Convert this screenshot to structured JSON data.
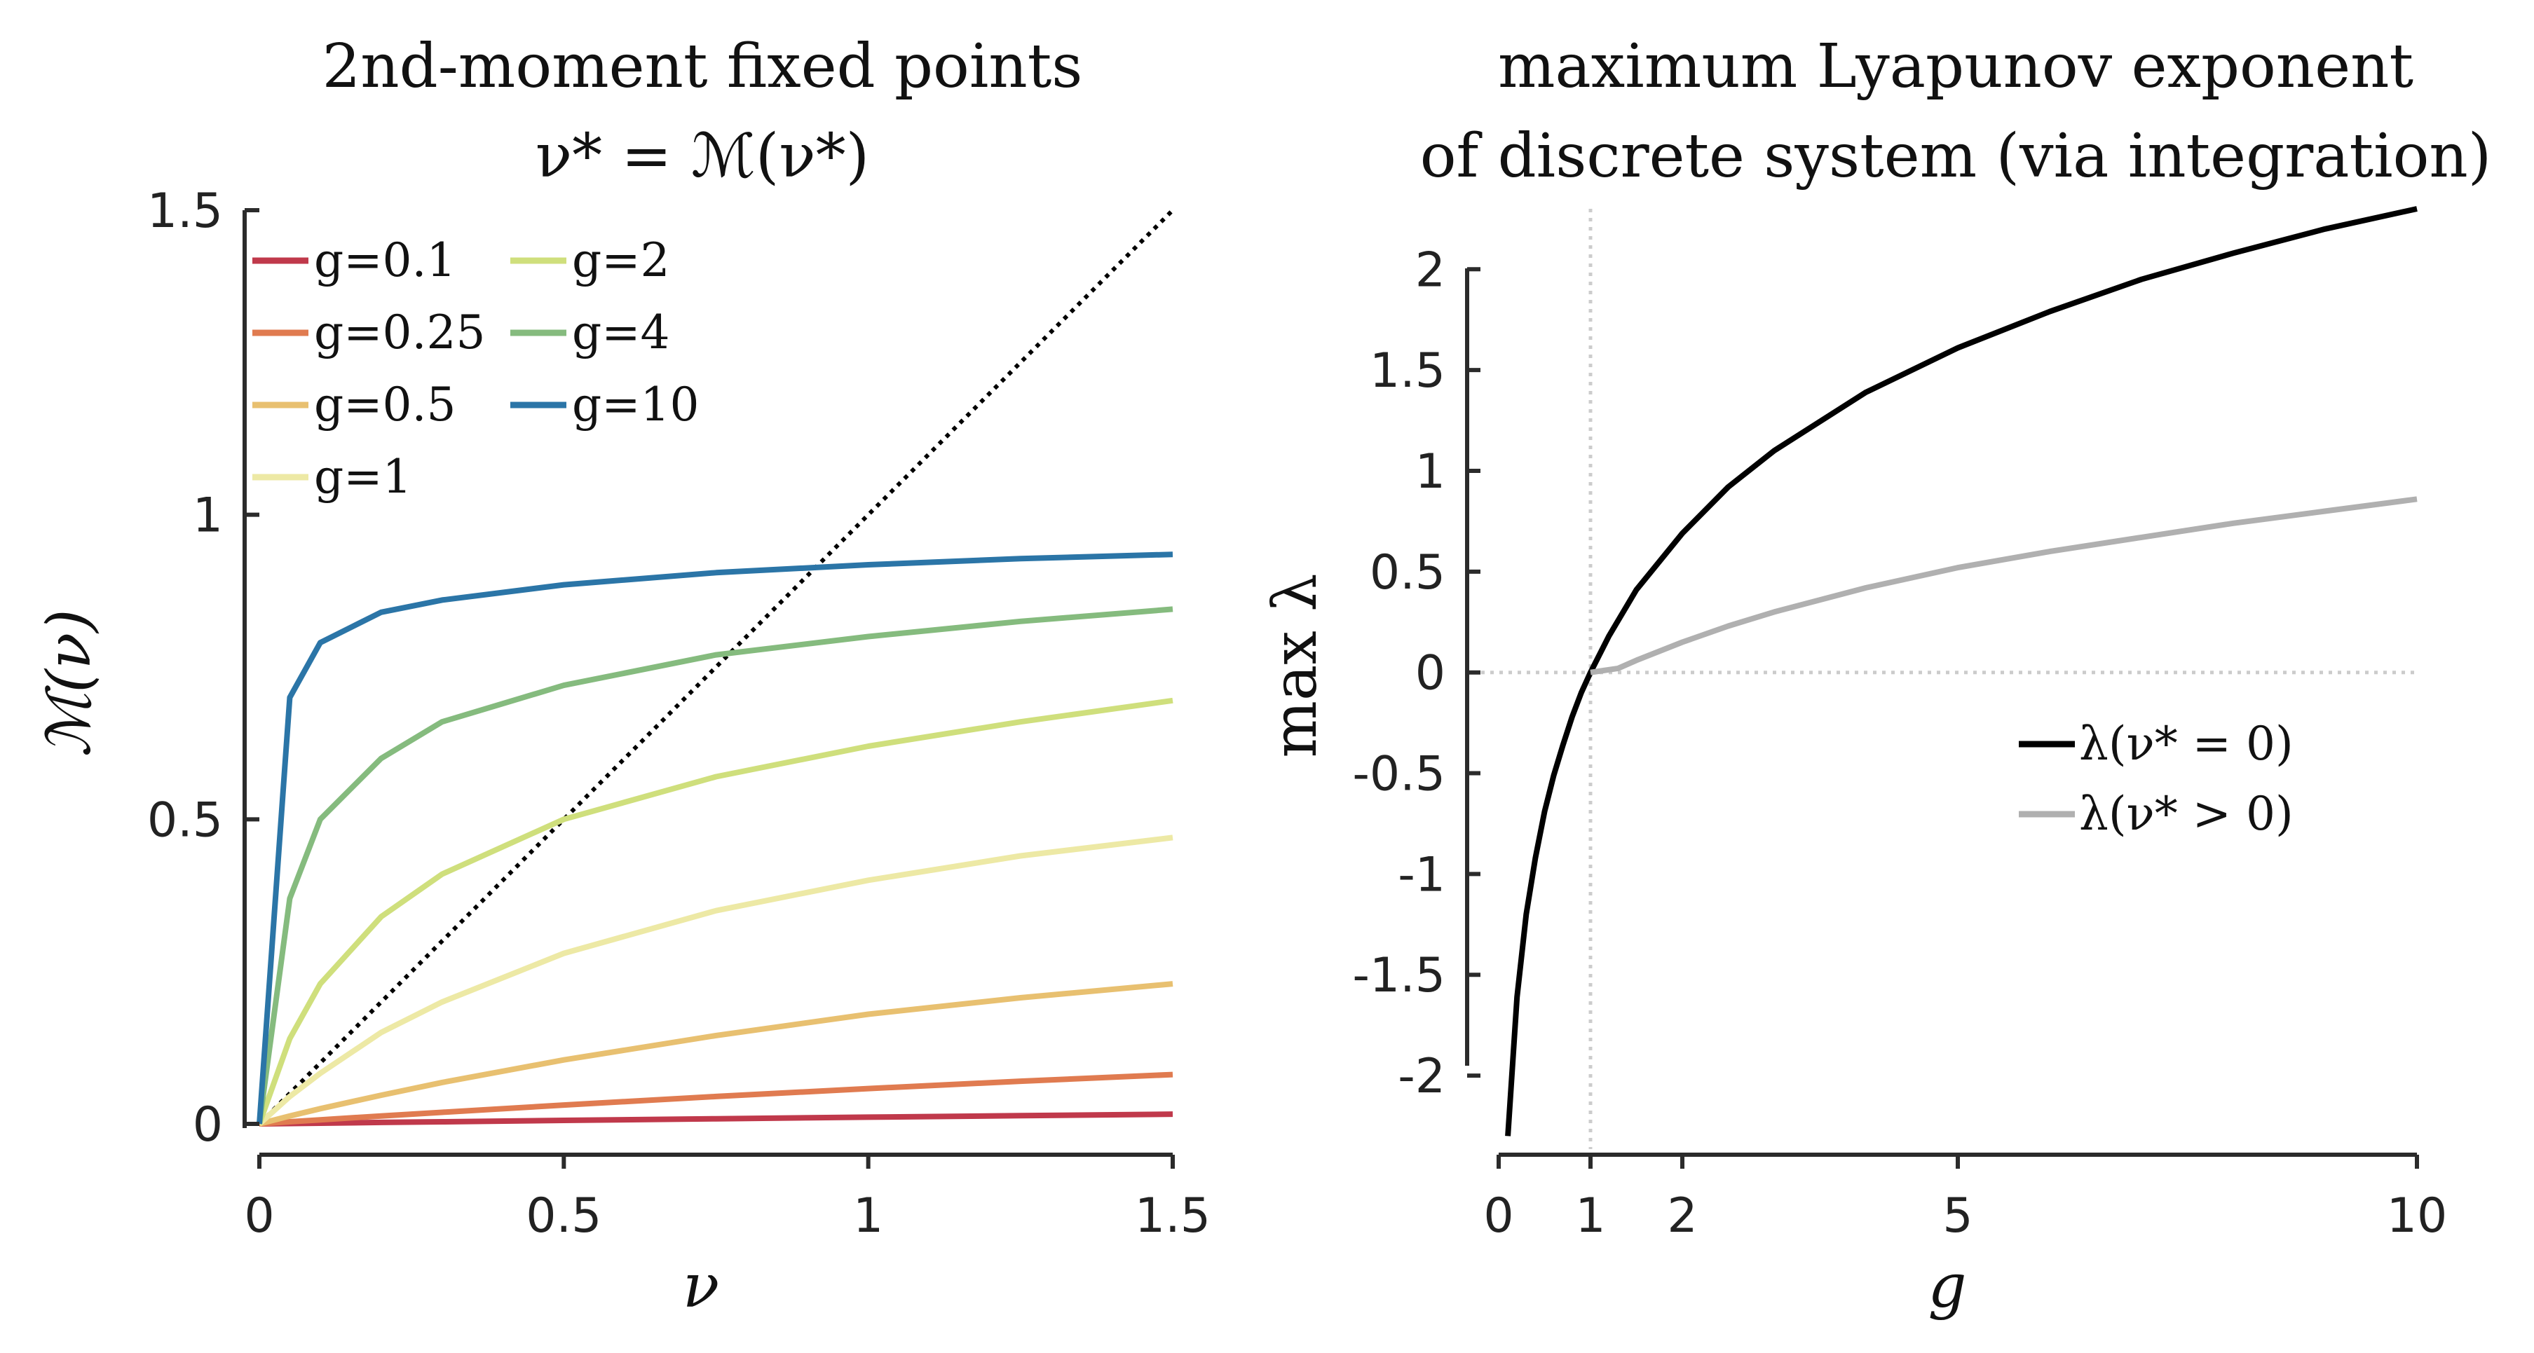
{
  "chart_data": [
    {
      "type": "line",
      "title": [
        "2nd-moment fixed points",
        "ν* = ℳ(ν*)"
      ],
      "xlabel": "ν",
      "ylabel": "ℳ(ν)",
      "xlim": [
        0,
        1.5
      ],
      "ylim": [
        0,
        1.5
      ],
      "xticks": [
        0,
        0.5,
        1,
        1.5
      ],
      "xtick_labels": [
        "0",
        "0.5",
        "1",
        "1.5"
      ],
      "yticks": [
        0,
        0.5,
        1,
        1.5
      ],
      "ytick_labels": [
        "0",
        "0.5",
        "1",
        "1.5"
      ],
      "grid": false,
      "legend_position": "top-left",
      "x": [
        0,
        0.05,
        0.1,
        0.2,
        0.3,
        0.5,
        0.75,
        1.0,
        1.25,
        1.5
      ],
      "series": [
        {
          "name": "g=0.1",
          "color": "#c0394b",
          "values": [
            0,
            0.0006,
            0.0012,
            0.0024,
            0.0035,
            0.0057,
            0.0084,
            0.011,
            0.0135,
            0.016
          ]
        },
        {
          "name": "g=0.25",
          "color": "#e07b50",
          "values": [
            0,
            0.0034,
            0.0067,
            0.013,
            0.019,
            0.031,
            0.045,
            0.058,
            0.07,
            0.081
          ]
        },
        {
          "name": "g=0.5",
          "color": "#e8c070",
          "values": [
            0,
            0.013,
            0.025,
            0.047,
            0.068,
            0.105,
            0.145,
            0.18,
            0.207,
            0.23
          ]
        },
        {
          "name": "g=1",
          "color": "#ede9a5",
          "values": [
            0,
            0.045,
            0.083,
            0.15,
            0.2,
            0.28,
            0.35,
            0.4,
            0.44,
            0.47
          ]
        },
        {
          "name": "g=2",
          "color": "#cfdf7c",
          "values": [
            0,
            0.14,
            0.23,
            0.34,
            0.41,
            0.5,
            0.57,
            0.62,
            0.66,
            0.695
          ]
        },
        {
          "name": "g=4",
          "color": "#85bb7e",
          "values": [
            0,
            0.37,
            0.5,
            0.6,
            0.66,
            0.72,
            0.77,
            0.8,
            0.825,
            0.845
          ]
        },
        {
          "name": "g=10",
          "color": "#2b75a7",
          "values": [
            0,
            0.7,
            0.79,
            0.84,
            0.86,
            0.885,
            0.905,
            0.918,
            0.928,
            0.935
          ]
        }
      ],
      "reference_line": {
        "style": "dotted",
        "color": "#000000",
        "x": [
          0,
          1.5
        ],
        "y": [
          0,
          1.5
        ]
      }
    },
    {
      "type": "line",
      "title": [
        "maximum Lyapunov exponent",
        "of discrete system (via integration)"
      ],
      "xlabel": "g",
      "ylabel": "max λ",
      "xlim": [
        0,
        10
      ],
      "ylim": [
        -2.25,
        2.3
      ],
      "xticks": [
        0,
        1,
        2,
        5,
        10
      ],
      "xtick_labels": [
        "0",
        "1",
        "2",
        "5",
        "10"
      ],
      "yticks": [
        -2,
        -1.5,
        -1,
        -0.5,
        0,
        0.5,
        1,
        1.5,
        2
      ],
      "ytick_labels": [
        "-2",
        "-1.5",
        "-1",
        "-0.5",
        "0",
        "0.5",
        "1",
        "1.5",
        "2"
      ],
      "grid": false,
      "legend_position": "center-right",
      "reference_lines": [
        {
          "orientation": "vertical",
          "value": 1,
          "style": "dotted",
          "color": "#cccccc"
        },
        {
          "orientation": "horizontal",
          "value": 0,
          "style": "dotted",
          "color": "#cccccc"
        }
      ],
      "series": [
        {
          "name": "λ(ν* = 0)",
          "color": "#000000",
          "x": [
            0.1,
            0.2,
            0.3,
            0.4,
            0.5,
            0.6,
            0.7,
            0.8,
            0.9,
            1.0,
            1.2,
            1.5,
            2,
            2.5,
            3,
            4,
            5,
            6,
            7,
            8,
            9,
            10
          ],
          "values": [
            -2.3,
            -1.61,
            -1.2,
            -0.92,
            -0.69,
            -0.51,
            -0.36,
            -0.22,
            -0.1,
            0.0,
            0.18,
            0.41,
            0.69,
            0.92,
            1.1,
            1.39,
            1.61,
            1.79,
            1.95,
            2.08,
            2.2,
            2.3
          ]
        },
        {
          "name": "λ(ν* > 0)",
          "color": "#b0b0b0",
          "x": [
            1.0,
            1.3,
            1.5,
            2,
            2.5,
            3,
            4,
            5,
            6,
            7,
            8,
            9,
            10
          ],
          "values": [
            0.0,
            0.02,
            0.06,
            0.15,
            0.23,
            0.3,
            0.42,
            0.52,
            0.6,
            0.67,
            0.74,
            0.8,
            0.86
          ]
        }
      ]
    }
  ]
}
